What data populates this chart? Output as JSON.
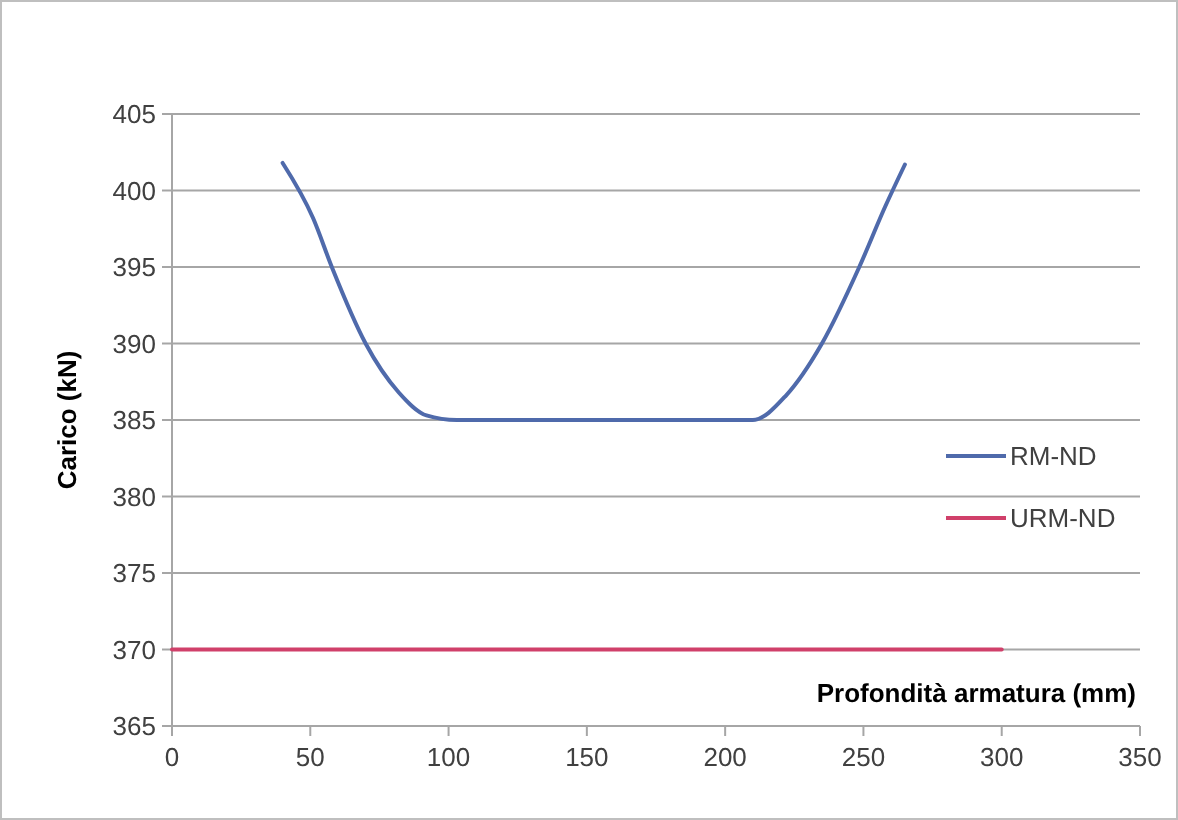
{
  "chart_data": {
    "type": "line",
    "xlabel": "Profondità armatura (mm)",
    "ylabel": "Carico (kN)",
    "xlim": [
      0,
      350
    ],
    "xticks": [
      0,
      50,
      100,
      150,
      200,
      250,
      300,
      350
    ],
    "ylim": [
      365,
      405
    ],
    "yticks": [
      365,
      370,
      375,
      380,
      385,
      390,
      395,
      400,
      405
    ],
    "grid": "y",
    "legend": "right",
    "marker": "none",
    "line_style": "solid",
    "series": [
      {
        "name": "RM-ND",
        "color": "#4f6aab",
        "x": [
          40,
          51,
          58,
          70,
          82,
          92,
          103,
          210,
          222,
          235,
          248.5,
          258,
          265
        ],
        "values": [
          401.8,
          398.2,
          394.9,
          390,
          386.8,
          385.3,
          385,
          385,
          386.6,
          390,
          395,
          399,
          401.7
        ]
      },
      {
        "name": "URM-ND",
        "color": "#d0406a",
        "x": [
          0,
          300
        ],
        "values": [
          370,
          370
        ]
      }
    ]
  }
}
